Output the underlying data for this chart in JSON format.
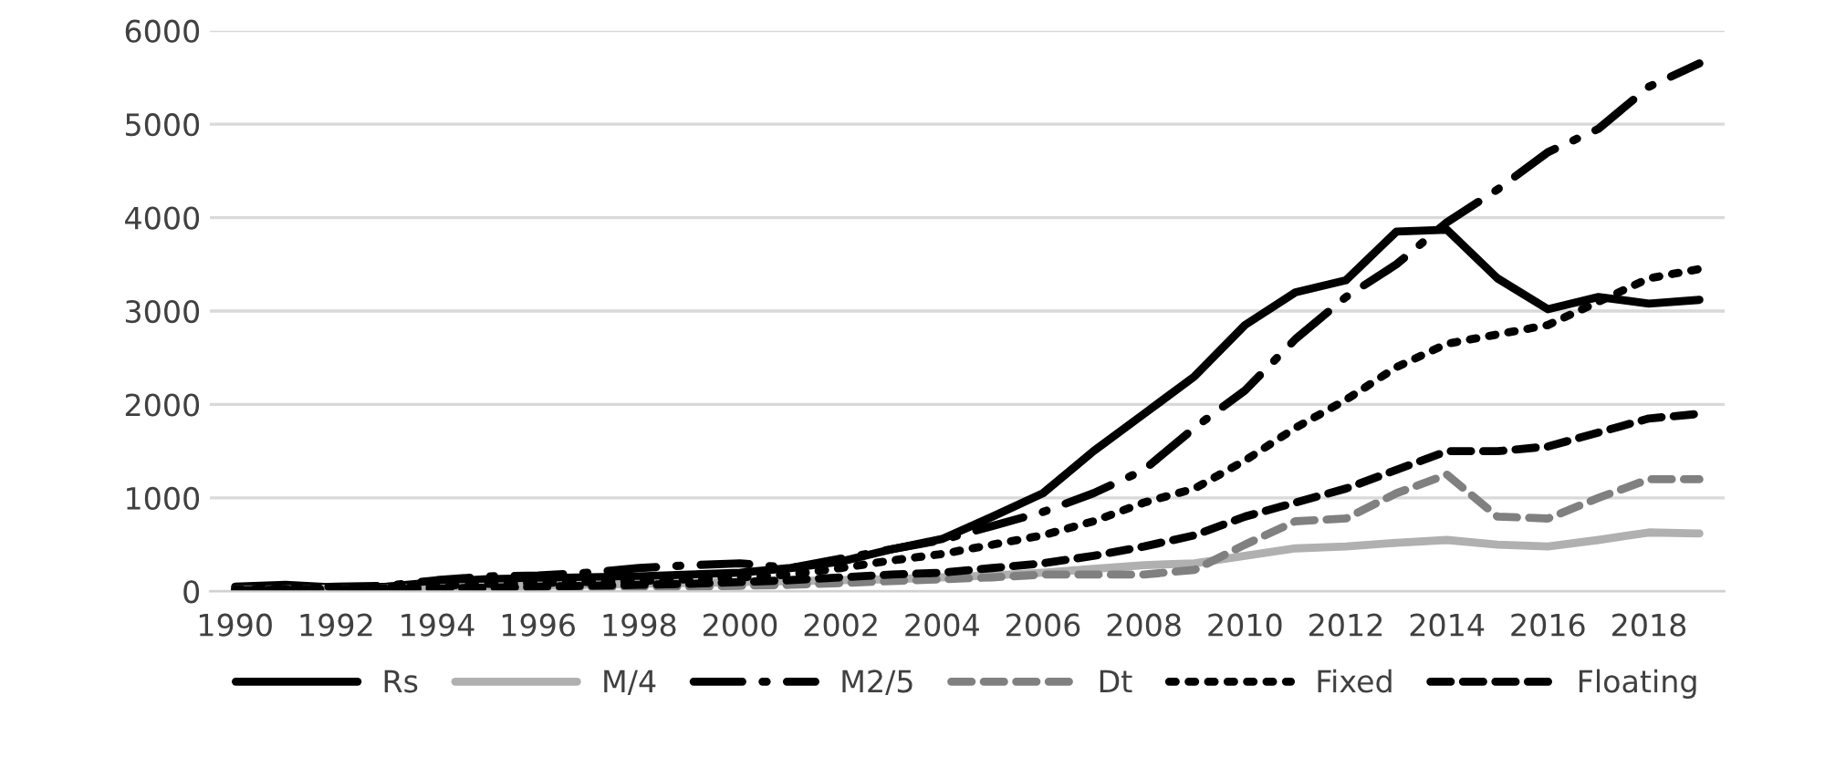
{
  "chart_data": {
    "type": "line",
    "x": [
      1990,
      1991,
      1992,
      1993,
      1994,
      1995,
      1996,
      1997,
      1998,
      1999,
      2000,
      2001,
      2002,
      2003,
      2004,
      2005,
      2006,
      2007,
      2008,
      2009,
      2010,
      2011,
      2012,
      2013,
      2014,
      2015,
      2016,
      2017,
      2018,
      2019
    ],
    "series": [
      {
        "name": "Rs",
        "color": "#000000",
        "line_style": "solid",
        "values": [
          50,
          70,
          40,
          50,
          100,
          130,
          140,
          150,
          160,
          180,
          200,
          250,
          320,
          450,
          560,
          800,
          1050,
          1500,
          1900,
          2300,
          2850,
          3200,
          3330,
          3850,
          3870,
          3350,
          3020,
          3150,
          3080,
          3120
        ]
      },
      {
        "name": "M/4",
        "color": "#b0b0b0",
        "line_style": "solid",
        "values": [
          20,
          20,
          30,
          30,
          40,
          50,
          60,
          70,
          80,
          90,
          100,
          110,
          120,
          130,
          150,
          170,
          200,
          240,
          280,
          300,
          380,
          460,
          480,
          520,
          550,
          500,
          480,
          550,
          630,
          620
        ]
      },
      {
        "name": "M2/5",
        "color": "#000000",
        "line_style": "dashdot",
        "values": [
          30,
          40,
          50,
          60,
          120,
          160,
          170,
          200,
          250,
          280,
          300,
          250,
          350,
          450,
          550,
          700,
          850,
          1050,
          1300,
          1750,
          2150,
          2700,
          3150,
          3500,
          3950,
          4300,
          4700,
          4950,
          5400,
          5650
        ]
      },
      {
        "name": "Dt",
        "color": "#808080",
        "line_style": "dashed",
        "values": [
          20,
          20,
          20,
          20,
          30,
          30,
          40,
          40,
          50,
          50,
          60,
          70,
          90,
          110,
          130,
          150,
          180,
          180,
          180,
          230,
          500,
          750,
          780,
          1050,
          1250,
          800,
          780,
          1000,
          1200,
          1200
        ]
      },
      {
        "name": "Fixed",
        "color": "#000000",
        "line_style": "dotted",
        "values": [
          20,
          30,
          30,
          40,
          60,
          80,
          90,
          100,
          110,
          130,
          150,
          180,
          250,
          330,
          400,
          500,
          600,
          750,
          950,
          1100,
          1400,
          1750,
          2050,
          2400,
          2650,
          2750,
          2850,
          3100,
          3350,
          3450
        ]
      },
      {
        "name": "Floating",
        "color": "#000000",
        "line_style": "dashed",
        "values": [
          10,
          20,
          20,
          30,
          30,
          40,
          50,
          60,
          70,
          80,
          100,
          120,
          150,
          180,
          200,
          250,
          300,
          380,
          480,
          600,
          800,
          950,
          1100,
          1300,
          1500,
          1500,
          1550,
          1700,
          1850,
          1900
        ]
      }
    ],
    "xlim": [
      1989.5,
      2019.5
    ],
    "xticks": [
      1990,
      1992,
      1994,
      1996,
      1998,
      2000,
      2002,
      2004,
      2006,
      2008,
      2010,
      2012,
      2014,
      2016,
      2018
    ],
    "ylim": [
      0,
      6000
    ],
    "yticks": [
      0,
      1000,
      2000,
      3000,
      4000,
      5000,
      6000
    ],
    "grid": "y",
    "legend": "bottom"
  }
}
